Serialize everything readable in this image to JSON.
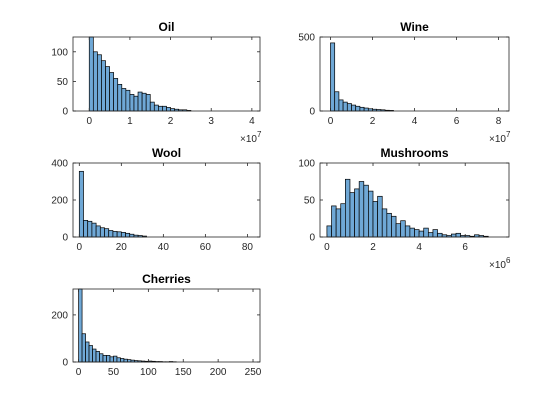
{
  "figure": {
    "bar_color": "#6fa8d6",
    "edge_color": "#000000",
    "background": "#ffffff"
  },
  "chart_data": [
    {
      "type": "bar",
      "title": "Oil",
      "xlim": [
        -0.4,
        4.2
      ],
      "ylim": [
        0,
        125
      ],
      "xticks": [
        0,
        1,
        2,
        3,
        4
      ],
      "xtick_labels": [
        "0",
        "1",
        "2",
        "3",
        "4"
      ],
      "yticks": [
        0,
        50,
        100
      ],
      "ytick_labels": [
        "0",
        "50",
        "100"
      ],
      "exponent_label": {
        "base": "×10",
        "power": "7"
      },
      "bin_start": 0,
      "bin_width": 0.1,
      "values": [
        125,
        100,
        95,
        85,
        75,
        65,
        55,
        45,
        38,
        35,
        28,
        25,
        32,
        30,
        28,
        15,
        10,
        8,
        8,
        6,
        4,
        3,
        2,
        2,
        1
      ]
    },
    {
      "type": "bar",
      "title": "Wine",
      "xlim": [
        -0.5,
        8.5
      ],
      "ylim": [
        0,
        500
      ],
      "xticks": [
        0,
        2,
        4,
        6,
        8
      ],
      "xtick_labels": [
        "0",
        "2",
        "4",
        "6",
        "8"
      ],
      "yticks": [
        0,
        500
      ],
      "ytick_labels": [
        "0",
        "500"
      ],
      "exponent_label": {
        "base": "×10",
        "power": "7"
      },
      "bin_start": 0,
      "bin_width": 0.2,
      "values": [
        460,
        130,
        75,
        60,
        50,
        40,
        32,
        25,
        20,
        15,
        12,
        10,
        8,
        5,
        4
      ]
    },
    {
      "type": "bar",
      "title": "Wool",
      "xlim": [
        -3,
        86
      ],
      "ylim": [
        0,
        400
      ],
      "xticks": [
        0,
        20,
        40,
        60,
        80
      ],
      "xtick_labels": [
        "0",
        "20",
        "40",
        "60",
        "80"
      ],
      "yticks": [
        0,
        200,
        400
      ],
      "ytick_labels": [
        "0",
        "200",
        "400"
      ],
      "bin_start": 0,
      "bin_width": 2,
      "values": [
        355,
        90,
        85,
        75,
        60,
        50,
        45,
        35,
        30,
        28,
        25,
        20,
        15,
        10,
        8,
        5
      ]
    },
    {
      "type": "bar",
      "title": "Mushrooms",
      "xlim": [
        -0.3,
        7.9
      ],
      "ylim": [
        0,
        100
      ],
      "xticks": [
        0,
        2,
        4,
        6
      ],
      "xtick_labels": [
        "0",
        "2",
        "4",
        "6"
      ],
      "yticks": [
        0,
        50,
        100
      ],
      "ytick_labels": [
        "0",
        "50",
        "100"
      ],
      "exponent_label": {
        "base": "×10",
        "power": "6"
      },
      "bin_start": 0,
      "bin_width": 0.2,
      "values": [
        15,
        42,
        38,
        45,
        78,
        60,
        65,
        75,
        70,
        62,
        48,
        55,
        38,
        32,
        28,
        18,
        22,
        15,
        12,
        10,
        8,
        12,
        6,
        10,
        5,
        3,
        2,
        4,
        5,
        2,
        2,
        1,
        3,
        2,
        1
      ]
    },
    {
      "type": "bar",
      "title": "Cherries",
      "xlim": [
        -8,
        260
      ],
      "ylim": [
        0,
        310
      ],
      "xticks": [
        0,
        50,
        100,
        150,
        200,
        250
      ],
      "xtick_labels": [
        "0",
        "50",
        "100",
        "150",
        "200",
        "250"
      ],
      "yticks": [
        0,
        200
      ],
      "ytick_labels": [
        "0",
        "200"
      ],
      "bin_start": 0,
      "bin_width": 5,
      "values": [
        310,
        120,
        85,
        70,
        55,
        45,
        35,
        28,
        28,
        22,
        25,
        18,
        15,
        12,
        10,
        8,
        6,
        5,
        4,
        3,
        4,
        3,
        2,
        2,
        1,
        1,
        2,
        1
      ]
    }
  ]
}
